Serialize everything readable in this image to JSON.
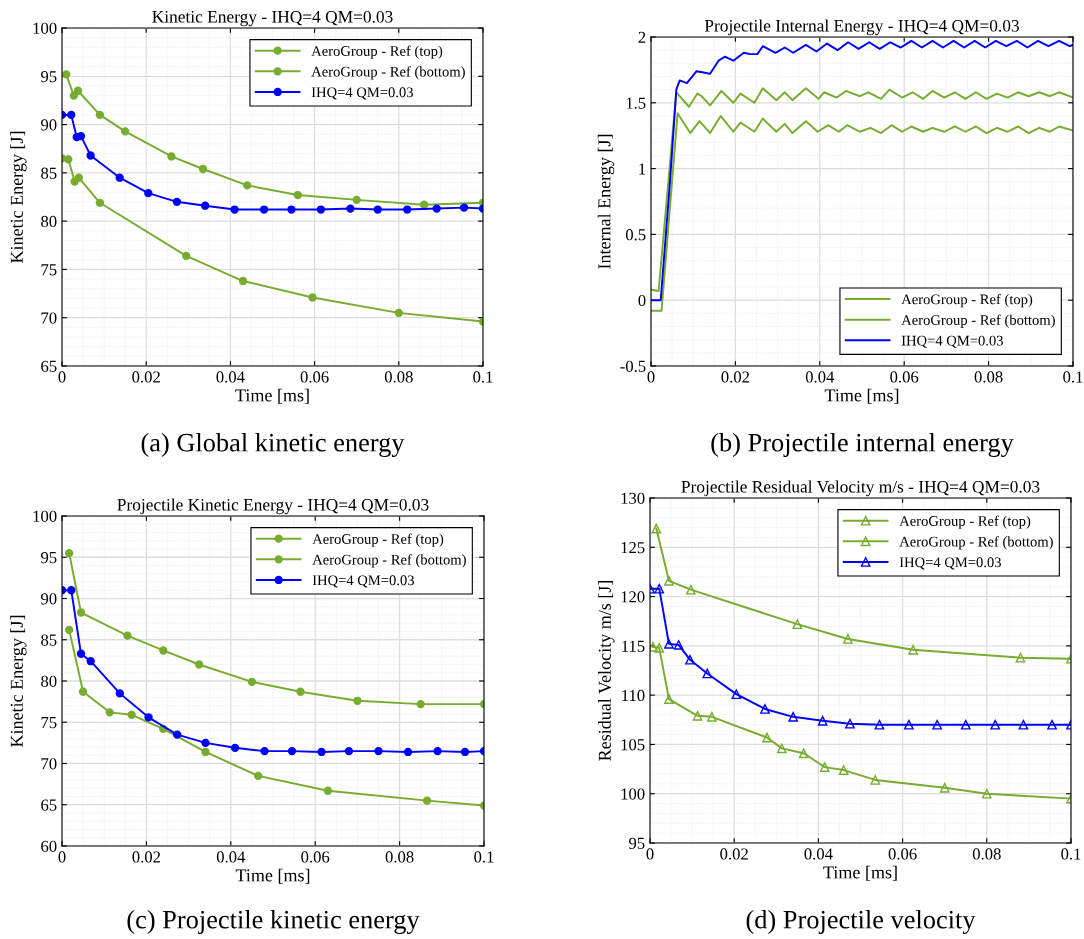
{
  "chart_data": [
    {
      "type": "line",
      "title": "Kinetic Energy - IHQ=4 QM=0.03",
      "xlabel": "Time [ms]",
      "ylabel": "Kinetic Energy [J]",
      "annotations": [
        "(a) Global kinetic energy"
      ],
      "xlim": [
        0,
        0.1
      ],
      "xticks": [
        0,
        0.02,
        0.04,
        0.06,
        0.08,
        0.1
      ],
      "ylim": [
        65,
        100
      ],
      "yticks": [
        65,
        70,
        75,
        80,
        85,
        90,
        95,
        100
      ],
      "grid": true,
      "legend": "top right",
      "marker": "circle",
      "line_style": "solid",
      "series": [
        {
          "name": "AeroGroup - Ref (top)",
          "color": "#77ac30",
          "x": [
            0.001,
            0.0028,
            0.0038,
            0.009,
            0.015,
            0.026,
            0.0335,
            0.044,
            0.056,
            0.07,
            0.086,
            0.1
          ],
          "values": [
            95.2,
            93.0,
            93.5,
            91.0,
            89.3,
            86.7,
            85.4,
            83.7,
            82.7,
            82.2,
            81.7,
            81.9
          ]
        },
        {
          "name": "AeroGroup - Ref (bottom)",
          "color": "#77ac30",
          "x": [
            0,
            0.0015,
            0.003,
            0.004,
            0.009,
            0.0295,
            0.043,
            0.0595,
            0.08,
            0.1
          ],
          "values": [
            86.5,
            86.4,
            84.1,
            84.5,
            81.9,
            76.4,
            73.8,
            72.1,
            70.5,
            69.6
          ]
        },
        {
          "name": "IHQ=4 QM=0.03",
          "color": "#0000ff",
          "x": [
            0,
            0.0022,
            0.0035,
            0.0045,
            0.0068,
            0.0137,
            0.0205,
            0.0273,
            0.034,
            0.041,
            0.048,
            0.0545,
            0.0615,
            0.0685,
            0.075,
            0.082,
            0.089,
            0.0955,
            0.1
          ],
          "values": [
            91.0,
            91.0,
            88.7,
            88.8,
            86.8,
            84.5,
            82.9,
            82.0,
            81.6,
            81.2,
            81.2,
            81.2,
            81.2,
            81.3,
            81.2,
            81.2,
            81.3,
            81.4,
            81.3
          ]
        }
      ]
    },
    {
      "type": "line",
      "title": "Projectile Internal Energy - IHQ=4 QM=0.03",
      "xlabel": "Time [ms]",
      "ylabel": "Internal Energy [J]",
      "annotations": [
        "(b) Projectile internal energy"
      ],
      "xlim": [
        0,
        0.1
      ],
      "xticks": [
        0,
        0.02,
        0.04,
        0.06,
        0.08,
        0.1
      ],
      "ylim": [
        -0.5,
        2
      ],
      "yticks": [
        -0.5,
        0,
        0.5,
        1,
        1.5,
        2
      ],
      "grid": true,
      "legend": "bottom right",
      "marker": "none",
      "line_style": "solid",
      "series": [
        {
          "name": "AeroGroup - Ref (top)",
          "color": "#77ac30",
          "x": [
            0,
            0.0018,
            0.006,
            0.009,
            0.011,
            0.012,
            0.014,
            0.0167,
            0.0195,
            0.0212,
            0.0245,
            0.0265,
            0.0297,
            0.0317,
            0.0335,
            0.0367,
            0.0397,
            0.041,
            0.044,
            0.0462,
            0.0495,
            0.0515,
            0.0545,
            0.0565,
            0.0595,
            0.062,
            0.0645,
            0.0667,
            0.0695,
            0.072,
            0.0745,
            0.077,
            0.0795,
            0.082,
            0.0845,
            0.087,
            0.0895,
            0.092,
            0.0945,
            0.0967,
            0.1
          ],
          "values": [
            0.08,
            0.07,
            1.58,
            1.47,
            1.57,
            1.55,
            1.48,
            1.59,
            1.5,
            1.57,
            1.5,
            1.61,
            1.52,
            1.58,
            1.52,
            1.61,
            1.53,
            1.58,
            1.54,
            1.59,
            1.55,
            1.58,
            1.53,
            1.6,
            1.54,
            1.58,
            1.53,
            1.59,
            1.54,
            1.58,
            1.53,
            1.58,
            1.53,
            1.57,
            1.54,
            1.58,
            1.55,
            1.58,
            1.55,
            1.58,
            1.54
          ]
        },
        {
          "name": "AeroGroup - Ref (bottom)",
          "color": "#77ac30",
          "x": [
            0,
            0.0025,
            0.0063,
            0.0093,
            0.0115,
            0.014,
            0.0165,
            0.0195,
            0.0212,
            0.0245,
            0.0265,
            0.0297,
            0.0317,
            0.0335,
            0.0367,
            0.0395,
            0.042,
            0.0445,
            0.0465,
            0.0495,
            0.052,
            0.0545,
            0.057,
            0.0595,
            0.0617,
            0.0645,
            0.0667,
            0.0695,
            0.072,
            0.0745,
            0.077,
            0.0795,
            0.082,
            0.0845,
            0.087,
            0.0895,
            0.092,
            0.0945,
            0.0967,
            0.1
          ],
          "values": [
            -0.08,
            -0.08,
            1.42,
            1.27,
            1.36,
            1.27,
            1.4,
            1.28,
            1.35,
            1.28,
            1.38,
            1.28,
            1.34,
            1.27,
            1.36,
            1.28,
            1.33,
            1.28,
            1.33,
            1.28,
            1.31,
            1.27,
            1.33,
            1.28,
            1.32,
            1.28,
            1.31,
            1.28,
            1.32,
            1.28,
            1.32,
            1.27,
            1.31,
            1.28,
            1.32,
            1.27,
            1.31,
            1.28,
            1.32,
            1.29
          ]
        },
        {
          "name": "IHQ=4 QM=0.03",
          "color": "#0000ff",
          "x": [
            0,
            0.0023,
            0.0045,
            0.006,
            0.0068,
            0.0085,
            0.0108,
            0.0125,
            0.014,
            0.016,
            0.0175,
            0.0195,
            0.022,
            0.0235,
            0.0252,
            0.0265,
            0.0295,
            0.0317,
            0.0337,
            0.0367,
            0.0392,
            0.0417,
            0.0442,
            0.0467,
            0.0492,
            0.0517,
            0.0542,
            0.0567,
            0.0592,
            0.0617,
            0.0642,
            0.0667,
            0.0692,
            0.0717,
            0.0742,
            0.0767,
            0.0792,
            0.0817,
            0.0842,
            0.0867,
            0.0892,
            0.0917,
            0.0942,
            0.0967,
            0.0992,
            0.1
          ],
          "values": [
            0,
            0,
            0.9,
            1.6,
            1.67,
            1.65,
            1.74,
            1.73,
            1.72,
            1.82,
            1.85,
            1.82,
            1.88,
            1.87,
            1.87,
            1.93,
            1.88,
            1.92,
            1.88,
            1.94,
            1.89,
            1.95,
            1.9,
            1.96,
            1.91,
            1.96,
            1.91,
            1.96,
            1.92,
            1.97,
            1.92,
            1.97,
            1.92,
            1.97,
            1.92,
            1.97,
            1.92,
            1.97,
            1.93,
            1.97,
            1.92,
            1.97,
            1.93,
            1.97,
            1.93,
            1.94
          ]
        }
      ]
    },
    {
      "type": "line",
      "title": "Projectile Kinetic Energy - IHQ=4 QM=0.03",
      "xlabel": "Time [ms]",
      "ylabel": "Kinetic Energy [J]",
      "annotations": [
        "(c) Projectile kinetic energy"
      ],
      "xlim": [
        0,
        0.1
      ],
      "xticks": [
        0,
        0.02,
        0.04,
        0.06,
        0.08,
        0.1
      ],
      "ylim": [
        60,
        100
      ],
      "yticks": [
        60,
        65,
        70,
        75,
        80,
        85,
        90,
        95,
        100
      ],
      "grid": true,
      "legend": "top right",
      "marker": "circle",
      "line_style": "solid",
      "series": [
        {
          "name": "AeroGroup - Ref (top)",
          "color": "#77ac30",
          "x": [
            0.0017,
            0.0045,
            0.0155,
            0.024,
            0.0325,
            0.045,
            0.0565,
            0.07,
            0.085,
            0.1
          ],
          "values": [
            95.5,
            88.3,
            85.5,
            83.7,
            82.0,
            79.9,
            78.7,
            77.6,
            77.2,
            77.2
          ]
        },
        {
          "name": "AeroGroup - Ref (bottom)",
          "color": "#77ac30",
          "x": [
            0.0017,
            0.005,
            0.0113,
            0.0165,
            0.024,
            0.034,
            0.0465,
            0.063,
            0.0865,
            0.1
          ],
          "values": [
            86.2,
            78.7,
            76.2,
            75.9,
            74.2,
            71.4,
            68.5,
            66.7,
            65.5,
            64.9
          ]
        },
        {
          "name": "IHQ=4 QM=0.03",
          "color": "#0000ff",
          "x": [
            0,
            0.0022,
            0.0045,
            0.0068,
            0.0137,
            0.0205,
            0.0273,
            0.034,
            0.041,
            0.048,
            0.0545,
            0.0615,
            0.068,
            0.075,
            0.082,
            0.089,
            0.0955,
            0.1
          ],
          "values": [
            91.0,
            91.0,
            83.3,
            82.4,
            78.5,
            75.6,
            73.5,
            72.5,
            71.9,
            71.5,
            71.5,
            71.4,
            71.5,
            71.5,
            71.4,
            71.5,
            71.4,
            71.5
          ]
        }
      ]
    },
    {
      "type": "line",
      "title": "Projectile Residual Velocity m/s - IHQ=4 QM=0.03",
      "xlabel": "Time [ms]",
      "ylabel": "Residual Velocity m/s [J]",
      "annotations": [
        "(d) Projectile velocity"
      ],
      "xlim": [
        0,
        0.1
      ],
      "xticks": [
        0,
        0.02,
        0.04,
        0.06,
        0.08,
        0.1
      ],
      "ylim": [
        95,
        130
      ],
      "yticks": [
        95,
        100,
        105,
        110,
        115,
        120,
        125,
        130
      ],
      "grid": true,
      "legend": "top right",
      "marker": "triangle",
      "line_style": "solid",
      "series": [
        {
          "name": "AeroGroup - Ref (top)",
          "color": "#77ac30",
          "x": [
            0.0015,
            0.0045,
            0.0097,
            0.035,
            0.047,
            0.0625,
            0.088,
            0.1
          ],
          "values": [
            126.9,
            121.6,
            120.7,
            117.2,
            115.7,
            114.6,
            113.8,
            113.7
          ]
        },
        {
          "name": "AeroGroup - Ref (bottom)",
          "color": "#77ac30",
          "x": [
            0.0007,
            0.0022,
            0.0045,
            0.0113,
            0.0147,
            0.0278,
            0.0313,
            0.0365,
            0.0415,
            0.046,
            0.0535,
            0.07,
            0.08,
            0.1
          ],
          "values": [
            114.9,
            114.8,
            109.6,
            107.9,
            107.8,
            105.7,
            104.6,
            104.1,
            102.7,
            102.4,
            101.4,
            100.6,
            100.0,
            99.5
          ]
        },
        {
          "name": "IHQ=4 QM=0.03",
          "color": "#0000ff",
          "x": [
            0,
            0.0022,
            0.0045,
            0.0068,
            0.0095,
            0.0136,
            0.0205,
            0.0273,
            0.034,
            0.041,
            0.0475,
            0.0545,
            0.0615,
            0.0682,
            0.075,
            0.082,
            0.0887,
            0.0955,
            0.1
          ],
          "values": [
            120.8,
            120.8,
            115.2,
            115.1,
            113.6,
            112.2,
            110.1,
            108.6,
            107.8,
            107.4,
            107.1,
            107.0,
            107.0,
            107.0,
            107.0,
            107.0,
            107.0,
            107.0,
            107.0
          ]
        }
      ]
    }
  ]
}
